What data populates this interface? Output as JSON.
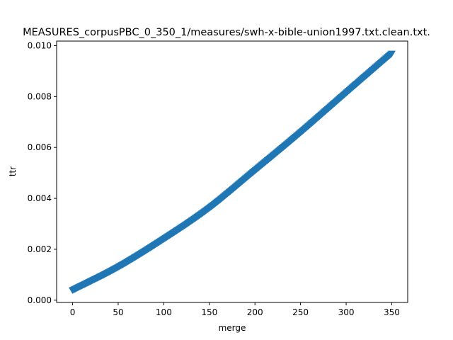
{
  "chart_data": {
    "type": "scatter",
    "title": "MEASURES_corpusPBC_0_350_1/measures/swh-x-bible-union1997.txt.clean.txt.",
    "xlabel": "merge",
    "ylabel": "ttr",
    "xlim": [
      -17.5,
      367.5
    ],
    "ylim": [
      -9e-05,
      0.01018
    ],
    "x_ticks": [
      0,
      50,
      100,
      150,
      200,
      250,
      300,
      350
    ],
    "y_ticks": [
      0.0,
      0.002,
      0.004,
      0.006,
      0.008,
      0.01
    ],
    "y_tick_labels": [
      "0.000",
      "0.002",
      "0.004",
      "0.006",
      "0.008",
      "0.010"
    ],
    "grid": false,
    "marker": "thumbs-down",
    "series_color": "#1f77b4",
    "x_start": 0,
    "x_end": 350,
    "x_step": 1,
    "anchors": {
      "x": [
        0,
        50,
        100,
        150,
        200,
        250,
        300,
        350
      ],
      "y": [
        0.0004,
        0.00131,
        0.00241,
        0.00363,
        0.0051,
        0.00659,
        0.00815,
        0.0097
      ]
    }
  }
}
